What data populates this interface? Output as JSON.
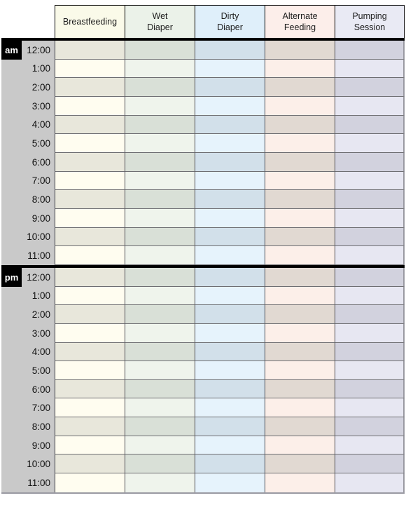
{
  "page": {
    "background": "#ffffff"
  },
  "table": {
    "columns": [
      {
        "id": "breastfeeding",
        "label": "Breastfeeding",
        "label_lines": [
          "Breastfeeding"
        ],
        "header_bg": "#fafae9",
        "row_light": "#fffdf0",
        "row_dark": "#e8e7db"
      },
      {
        "id": "wet-diaper",
        "label": "Wet Diaper",
        "label_lines": [
          "Wet",
          "Diaper"
        ],
        "header_bg": "#ebf2e9",
        "row_light": "#eff4ec",
        "row_dark": "#d9e0d7"
      },
      {
        "id": "dirty-diaper",
        "label": "Dirty Diaper",
        "label_lines": [
          "Dirty",
          "Diaper"
        ],
        "header_bg": "#dfeffa",
        "row_light": "#e6f3fc",
        "row_dark": "#d2e0ea"
      },
      {
        "id": "alternate-feeding",
        "label": "Alternate Feeding",
        "label_lines": [
          "Alternate",
          "Feeding"
        ],
        "header_bg": "#fceeea",
        "row_light": "#fcefe9",
        "row_dark": "#e1d9d2"
      },
      {
        "id": "pumping-session",
        "label": "Pumping Session",
        "label_lines": [
          "Pumping",
          "Session"
        ],
        "header_bg": "#e9eaf4",
        "row_light": "#e7e7f2",
        "row_dark": "#d2d2de"
      }
    ],
    "sections": [
      {
        "meridiem": "am",
        "times": [
          "12:00",
          "1:00",
          "2:00",
          "3:00",
          "4:00",
          "5:00",
          "6:00",
          "7:00",
          "8:00",
          "9:00",
          "10:00",
          "11:00"
        ]
      },
      {
        "meridiem": "pm",
        "times": [
          "12:00",
          "1:00",
          "2:00",
          "3:00",
          "4:00",
          "5:00",
          "6:00",
          "7:00",
          "8:00",
          "9:00",
          "10:00",
          "11:00"
        ]
      }
    ],
    "shading_rule": "even hour rows (12:00, 2:00, ...) use row_dark; odd hour rows use row_light; all cells are empty/blank",
    "colors": {
      "time_column_bg": "#c9c9c9",
      "meridiem_badge_bg": "#000000",
      "meridiem_badge_text": "#ffffff",
      "grid_line_vertical": "#4c4c54",
      "grid_line_horizontal": "#6e6e72",
      "section_divider": "#000000",
      "header_border": "#000000",
      "outer_edge": "#9a9aa2",
      "header_text": "#1c1c1c",
      "time_text": "#111111"
    }
  }
}
